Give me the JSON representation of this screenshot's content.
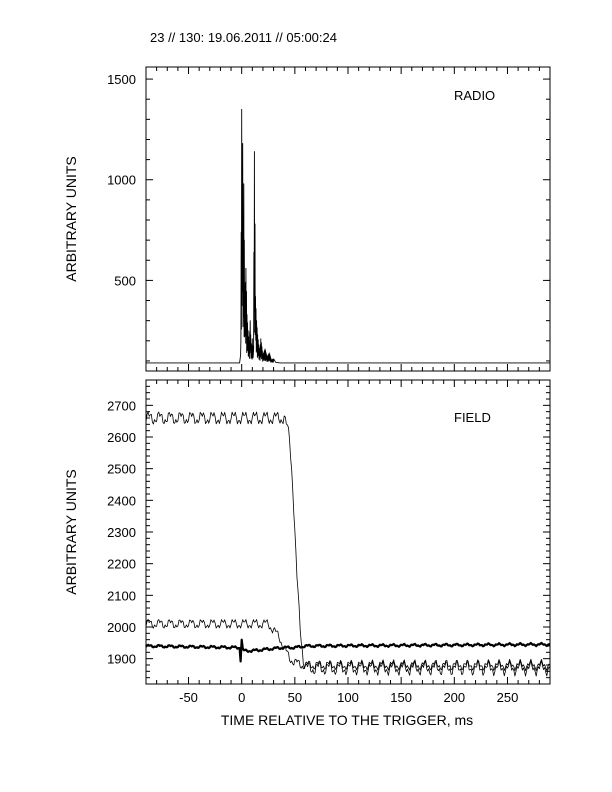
{
  "header": {
    "text": "23 // 130:   19.06.2011 // 05:00:24"
  },
  "xlabel": "TIME RELATIVE TO THE TRIGGER,   ms",
  "chart_data": [
    {
      "type": "line",
      "label": "RADIO",
      "ylabel": "ARBITRARY UNITS",
      "xlim": [
        -90,
        290
      ],
      "ylim": [
        50,
        1560
      ],
      "xticks": [
        -50,
        0,
        50,
        100,
        150,
        200,
        250
      ],
      "yticks": [
        500,
        1000,
        1500
      ],
      "grid": false,
      "series": [
        {
          "baseline": 90,
          "x": [
            -90,
            -2,
            -1,
            0,
            0.5,
            1,
            1.5,
            2,
            3,
            4,
            5,
            6,
            7,
            8,
            9,
            10,
            11,
            12,
            13,
            14,
            15,
            16,
            17,
            18,
            20,
            22,
            24,
            26,
            28,
            30,
            35,
            290
          ],
          "y": [
            90,
            90,
            130,
            1350,
            900,
            1180,
            600,
            980,
            420,
            560,
            330,
            250,
            190,
            300,
            160,
            210,
            140,
            1140,
            420,
            300,
            230,
            180,
            150,
            210,
            130,
            160,
            120,
            140,
            105,
            110,
            95,
            90
          ]
        }
      ]
    },
    {
      "type": "line",
      "label": "FIELD",
      "ylabel": "ARBITRARY UNITS",
      "xlim": [
        -90,
        290
      ],
      "ylim": [
        1820,
        2780
      ],
      "xticks": [
        -50,
        0,
        50,
        100,
        150,
        200,
        250
      ],
      "yticks": [
        1900,
        2000,
        2100,
        2200,
        2300,
        2400,
        2500,
        2600,
        2700
      ],
      "grid": false,
      "series": [
        {
          "x": [
            -90,
            40,
            45,
            48,
            50,
            52,
            55,
            58,
            60,
            290
          ],
          "y": [
            2660,
            2660,
            2600,
            2450,
            2300,
            2150,
            2000,
            1900,
            1870,
            1870
          ]
        },
        {
          "x": [
            -90,
            25,
            35,
            45,
            55,
            60,
            290
          ],
          "y": [
            2010,
            2010,
            1970,
            1900,
            1880,
            1880,
            1880
          ]
        },
        {
          "x": [
            -90,
            -2,
            -1,
            0,
            1,
            2,
            10,
            30,
            40,
            50,
            60,
            290
          ],
          "y": [
            1940,
            1935,
            1895,
            1960,
            1930,
            1925,
            1925,
            1932,
            1935,
            1935,
            1940,
            1945
          ]
        }
      ]
    }
  ]
}
